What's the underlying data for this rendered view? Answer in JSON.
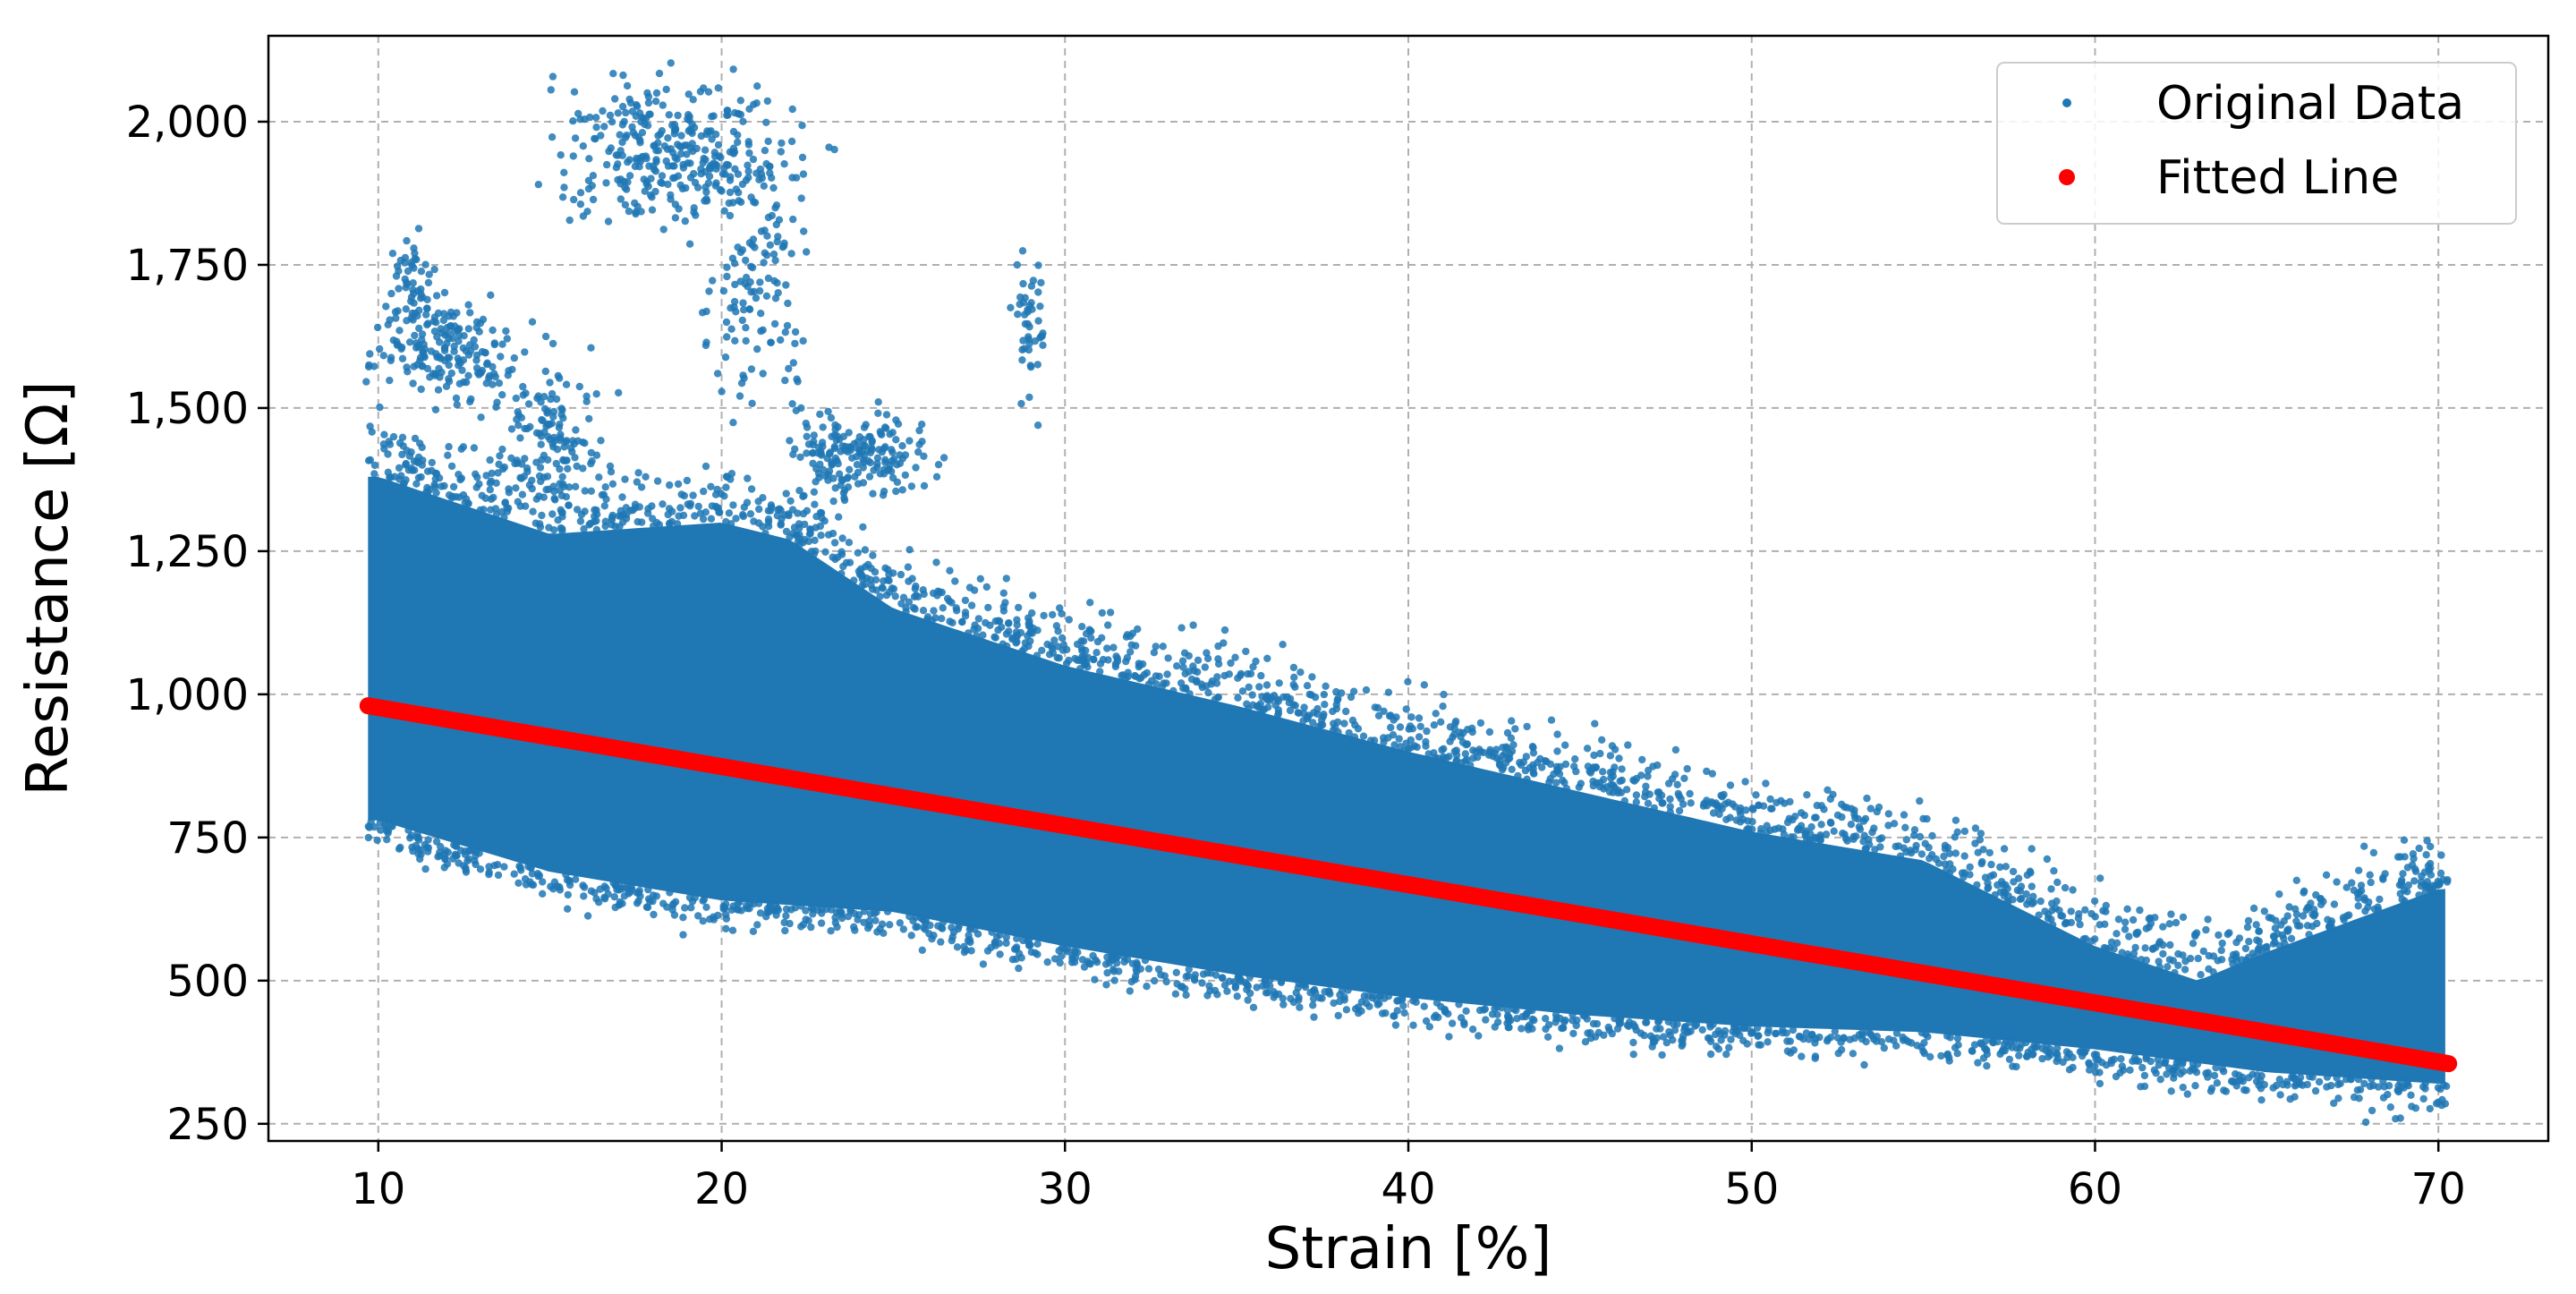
{
  "chart_data": {
    "type": "scatter",
    "title": "",
    "xlabel": "Strain [%]",
    "ylabel": "Resistance [Ω]",
    "xlim": [
      6.8,
      73.2
    ],
    "ylim": [
      220,
      2150
    ],
    "xticks": [
      10,
      20,
      30,
      40,
      50,
      60,
      70
    ],
    "xtick_labels": [
      "10",
      "20",
      "30",
      "40",
      "50",
      "60",
      "70"
    ],
    "yticks": [
      250,
      500,
      750,
      1000,
      1250,
      1500,
      1750,
      2000
    ],
    "ytick_labels": [
      "250",
      "500",
      "750",
      "1,000",
      "1,250",
      "1,500",
      "1,750",
      "2,000"
    ],
    "grid": true,
    "legend_position": "top-right",
    "series": [
      {
        "name": "Original Data",
        "kind": "scatter",
        "color": "#1f77b4",
        "x_range": [
          9.7,
          70.3
        ],
        "band_upper": [
          [
            10,
            1380
          ],
          [
            15,
            1280
          ],
          [
            20,
            1300
          ],
          [
            22,
            1270
          ],
          [
            25,
            1150
          ],
          [
            30,
            1050
          ],
          [
            35,
            980
          ],
          [
            40,
            900
          ],
          [
            45,
            830
          ],
          [
            50,
            760
          ],
          [
            55,
            710
          ],
          [
            60,
            560
          ],
          [
            63,
            500
          ],
          [
            65,
            550
          ],
          [
            70,
            660
          ]
        ],
        "band_lower": [
          [
            10,
            780
          ],
          [
            15,
            690
          ],
          [
            20,
            640
          ],
          [
            25,
            620
          ],
          [
            30,
            560
          ],
          [
            35,
            510
          ],
          [
            40,
            470
          ],
          [
            45,
            440
          ],
          [
            50,
            420
          ],
          [
            55,
            410
          ],
          [
            60,
            380
          ],
          [
            65,
            340
          ],
          [
            70,
            320
          ]
        ],
        "outlier_clusters": [
          {
            "x_center": 18.5,
            "y_center": 1950,
            "x_spread": 3.5,
            "y_spread": 130
          },
          {
            "x_center": 21.0,
            "y_center": 1750,
            "x_spread": 1.5,
            "y_spread": 250
          },
          {
            "x_center": 12.0,
            "y_center": 1600,
            "x_spread": 2.0,
            "y_spread": 90
          },
          {
            "x_center": 15.0,
            "y_center": 1450,
            "x_spread": 1.5,
            "y_spread": 120
          },
          {
            "x_center": 24.0,
            "y_center": 1420,
            "x_spread": 2.0,
            "y_spread": 80
          },
          {
            "x_center": 29.0,
            "y_center": 1650,
            "x_spread": 0.5,
            "y_spread": 130
          },
          {
            "x_center": 11.0,
            "y_center": 1700,
            "x_spread": 0.6,
            "y_spread": 100
          }
        ]
      },
      {
        "name": "Fitted Line",
        "kind": "line",
        "color": "#ff0000",
        "x": [
          9.7,
          70.3
        ],
        "y": [
          980,
          355
        ]
      }
    ],
    "legend": [
      {
        "label": "Original Data",
        "color": "#1f77b4",
        "marker": "small-dot"
      },
      {
        "label": "Fitted Line",
        "color": "#ff0000",
        "marker": "large-dot"
      }
    ]
  }
}
